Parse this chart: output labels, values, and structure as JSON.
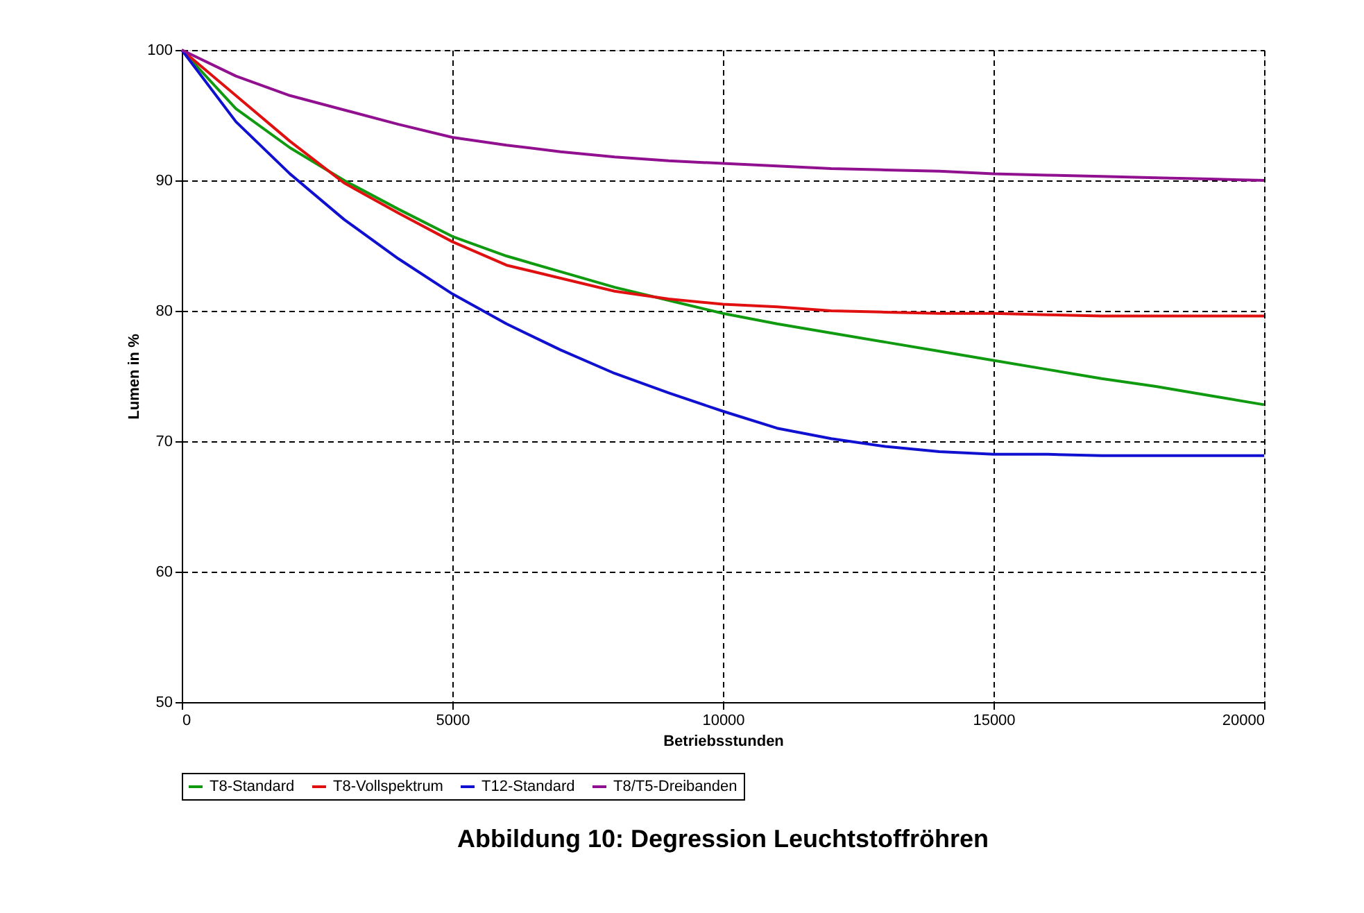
{
  "chart_data": {
    "type": "line",
    "title": "Abbildung 10: Degression Leuchtstoffröhren",
    "xlabel": "Betriebsstunden",
    "ylabel": "Lumen in %",
    "x": [
      0,
      1000,
      2000,
      3000,
      4000,
      5000,
      6000,
      7000,
      8000,
      9000,
      10000,
      11000,
      12000,
      13000,
      14000,
      15000,
      16000,
      17000,
      18000,
      19000,
      20000
    ],
    "series": [
      {
        "name": "T8-Standard",
        "color": "#109a10",
        "values": [
          100,
          95.5,
          92.5,
          90,
          87.8,
          85.7,
          84.2,
          83,
          81.8,
          80.8,
          79.8,
          79,
          78.3,
          77.6,
          76.9,
          76.2,
          75.5,
          74.8,
          74.2,
          73.5,
          72.8
        ]
      },
      {
        "name": "T8-Vollspektrum",
        "color": "#e01010",
        "values": [
          100,
          96.5,
          93,
          89.8,
          87.5,
          85.3,
          83.5,
          82.5,
          81.5,
          80.9,
          80.5,
          80.3,
          80,
          79.9,
          79.8,
          79.8,
          79.7,
          79.6,
          79.6,
          79.6,
          79.6
        ]
      },
      {
        "name": "T12-Standard",
        "color": "#1010d0",
        "values": [
          100,
          94.5,
          90.5,
          87,
          84,
          81.3,
          79,
          77,
          75.2,
          73.7,
          72.3,
          71,
          70.2,
          69.6,
          69.2,
          69,
          69,
          68.9,
          68.9,
          68.9,
          68.9
        ]
      },
      {
        "name": "T8/T5-Dreibanden",
        "color": "#901090",
        "values": [
          100,
          98,
          96.5,
          95.4,
          94.3,
          93.3,
          92.7,
          92.2,
          91.8,
          91.5,
          91.3,
          91.1,
          90.9,
          90.8,
          90.7,
          90.5,
          90.4,
          90.3,
          90.2,
          90.1,
          90
        ]
      }
    ],
    "xlim": [
      0,
      20000
    ],
    "ylim": [
      50,
      100
    ],
    "xticks": [
      0,
      5000,
      10000,
      15000,
      20000
    ],
    "yticks": [
      50,
      60,
      70,
      80,
      90,
      100
    ],
    "grid": true,
    "legend": "bottom",
    "line_style": "solid"
  }
}
